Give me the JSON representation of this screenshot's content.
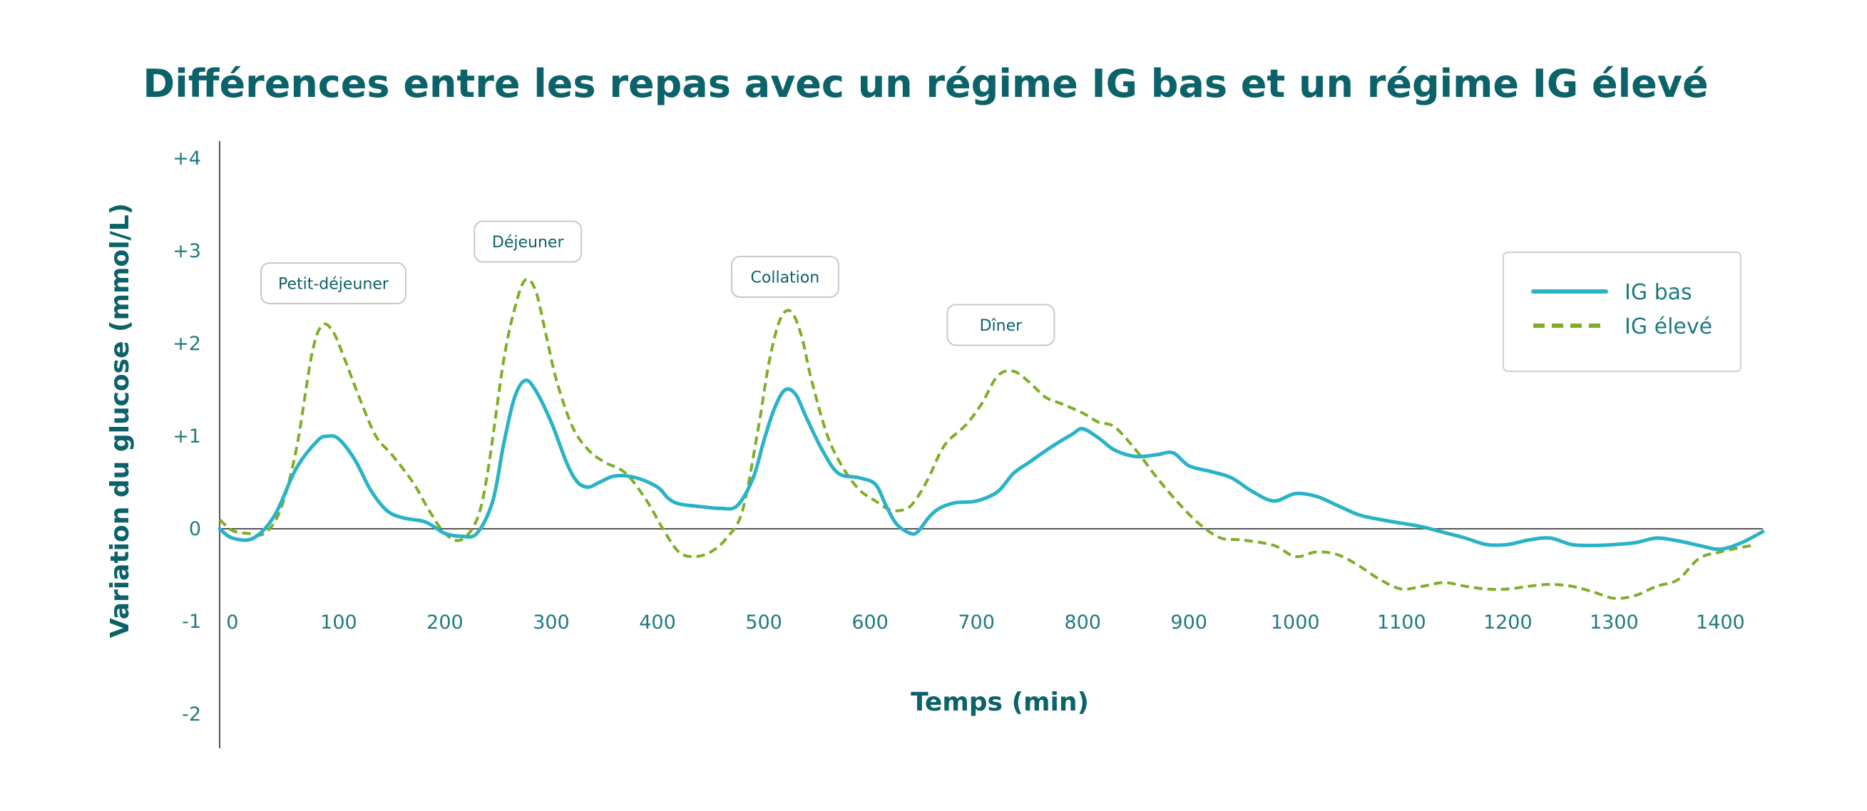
{
  "chart_data": {
    "type": "line",
    "title": "Différences entre les repas avec un régime IG bas et un régime IG élevé",
    "xlabel": "Temps (min)",
    "ylabel": "Variation du glucose (mmol/L)",
    "xlim": [
      -12,
      1440
    ],
    "ylim": [
      -2,
      4
    ],
    "x_ticks": [
      0,
      100,
      200,
      300,
      400,
      500,
      600,
      700,
      800,
      900,
      1000,
      1100,
      1200,
      1300,
      1400
    ],
    "x_tick_labels": [
      "0",
      "100",
      "200",
      "300",
      "400",
      "500",
      "600",
      "700",
      "800",
      "900",
      "1000",
      "1100",
      "1200",
      "1300",
      "1400"
    ],
    "y_ticks": [
      4,
      3,
      2,
      1,
      0,
      -1,
      -2
    ],
    "y_tick_labels": [
      "+4",
      "+3",
      "+2",
      "+1",
      "0",
      "-1",
      "-2"
    ],
    "legend": "top-right",
    "series": [
      {
        "name": "IG bas",
        "color": "#2ab3c6",
        "style": "solid",
        "x": [
          -12,
          0,
          20,
          40,
          60,
          80,
          90,
          100,
          115,
          130,
          145,
          160,
          180,
          190,
          200,
          215,
          230,
          245,
          255,
          265,
          275,
          285,
          300,
          315,
          325,
          335,
          345,
          360,
          380,
          400,
          410,
          420,
          440,
          460,
          475,
          490,
          500,
          510,
          520,
          530,
          540,
          555,
          570,
          590,
          605,
          615,
          625,
          638,
          645,
          655,
          665,
          680,
          700,
          720,
          735,
          750,
          770,
          790,
          800,
          815,
          830,
          850,
          870,
          885,
          900,
          920,
          940,
          960,
          980,
          1000,
          1020,
          1040,
          1060,
          1080,
          1100,
          1120,
          1140,
          1160,
          1180,
          1200,
          1220,
          1240,
          1260,
          1280,
          1300,
          1320,
          1340,
          1360,
          1380,
          1400,
          1420,
          1440
        ],
        "y": [
          0.0,
          -0.1,
          -0.1,
          0.15,
          0.65,
          0.95,
          1.0,
          0.97,
          0.75,
          0.42,
          0.2,
          0.12,
          0.08,
          0.02,
          -0.05,
          -0.08,
          -0.05,
          0.3,
          0.9,
          1.4,
          1.6,
          1.5,
          1.15,
          0.7,
          0.5,
          0.45,
          0.5,
          0.57,
          0.55,
          0.45,
          0.33,
          0.27,
          0.24,
          0.22,
          0.25,
          0.55,
          0.95,
          1.3,
          1.5,
          1.45,
          1.2,
          0.85,
          0.6,
          0.55,
          0.48,
          0.25,
          0.05,
          -0.05,
          -0.03,
          0.12,
          0.22,
          0.28,
          0.3,
          0.4,
          0.6,
          0.72,
          0.88,
          1.02,
          1.08,
          0.98,
          0.85,
          0.78,
          0.8,
          0.82,
          0.68,
          0.62,
          0.55,
          0.4,
          0.3,
          0.38,
          0.35,
          0.25,
          0.15,
          0.1,
          0.06,
          0.02,
          -0.04,
          -0.1,
          -0.17,
          -0.17,
          -0.12,
          -0.1,
          -0.17,
          -0.18,
          -0.17,
          -0.15,
          -0.1,
          -0.13,
          -0.18,
          -0.22,
          -0.15,
          -0.03
        ]
      },
      {
        "name": "IG élevé",
        "color": "#7fae25",
        "style": "dashed",
        "x": [
          -12,
          0,
          15,
          30,
          45,
          60,
          75,
          85,
          95,
          105,
          120,
          135,
          150,
          170,
          185,
          200,
          215,
          230,
          240,
          255,
          265,
          275,
          285,
          295,
          305,
          320,
          335,
          350,
          370,
          390,
          405,
          420,
          435,
          450,
          465,
          480,
          495,
          505,
          515,
          525,
          535,
          545,
          560,
          575,
          590,
          605,
          620,
          635,
          645,
          655,
          670,
          690,
          705,
          720,
          735,
          750,
          765,
          780,
          800,
          815,
          830,
          850,
          870,
          890,
          910,
          930,
          950,
          980,
          1000,
          1020,
          1040,
          1060,
          1080,
          1100,
          1120,
          1140,
          1160,
          1180,
          1200,
          1220,
          1240,
          1260,
          1280,
          1300,
          1320,
          1340,
          1360,
          1380,
          1400,
          1420,
          1430
        ],
        "y": [
          0.1,
          -0.02,
          -0.05,
          -0.05,
          0.2,
          0.85,
          1.9,
          2.2,
          2.12,
          1.85,
          1.4,
          1.0,
          0.8,
          0.5,
          0.2,
          -0.05,
          -0.12,
          0.1,
          0.6,
          1.8,
          2.35,
          2.68,
          2.58,
          2.1,
          1.6,
          1.1,
          0.85,
          0.72,
          0.6,
          0.3,
          0.0,
          -0.25,
          -0.3,
          -0.25,
          -0.1,
          0.2,
          1.1,
          1.8,
          2.25,
          2.35,
          2.1,
          1.6,
          1.0,
          0.65,
          0.42,
          0.3,
          0.2,
          0.22,
          0.35,
          0.55,
          0.9,
          1.12,
          1.35,
          1.65,
          1.7,
          1.58,
          1.42,
          1.35,
          1.25,
          1.15,
          1.1,
          0.85,
          0.55,
          0.28,
          0.05,
          -0.1,
          -0.12,
          -0.18,
          -0.3,
          -0.25,
          -0.28,
          -0.4,
          -0.55,
          -0.65,
          -0.62,
          -0.58,
          -0.62,
          -0.65,
          -0.65,
          -0.62,
          -0.6,
          -0.62,
          -0.68,
          -0.75,
          -0.72,
          -0.62,
          -0.55,
          -0.32,
          -0.25,
          -0.2,
          -0.18
        ]
      }
    ],
    "annotations": [
      {
        "label": "Petit-déjeuner",
        "x": 95,
        "y": 2.65
      },
      {
        "label": "Déjeuner",
        "x": 278,
        "y": 3.1
      },
      {
        "label": "Collation",
        "x": 520,
        "y": 2.72
      },
      {
        "label": "Dîner",
        "x": 723,
        "y": 2.2
      }
    ]
  }
}
